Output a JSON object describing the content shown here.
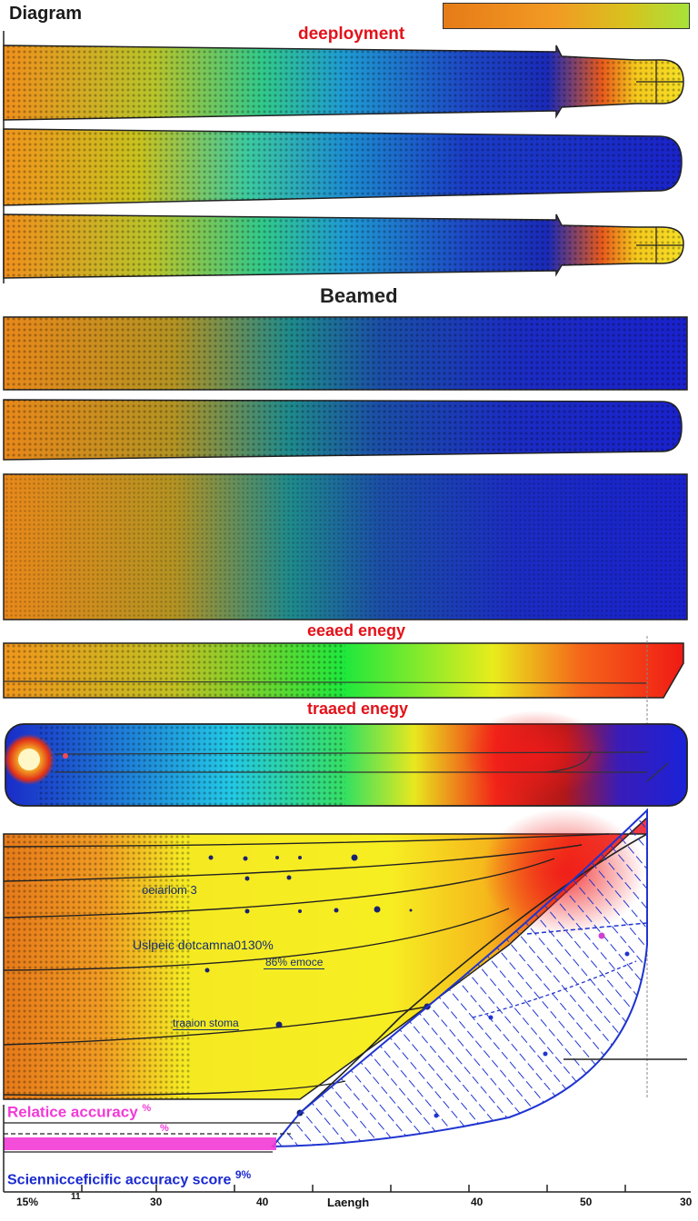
{
  "title": "Diagram",
  "legend": {
    "name": "color-scale-legend"
  },
  "sections": {
    "deployment": "deeployment",
    "beamed": "Beamed",
    "eeaed": "eeaed enegy",
    "traaed": "traaed enegy"
  },
  "annotations": {
    "a1": "oeiarlom 3",
    "a2": "Uslpeic dotcamna0130%",
    "a3": "86% emoce",
    "a4": "traaion stoma",
    "relative": "Relatice accuracy",
    "relative_pct": "%",
    "small_pct": "%",
    "scientific": "Sciennicceficific accuracy score",
    "scientific_pct": "9%"
  },
  "axis": {
    "xlabel": "Laengh",
    "ticks": [
      "15%",
      "11",
      "30",
      "40",
      "40",
      "50",
      "30"
    ]
  },
  "colors": {
    "orange": "#f08a1c",
    "yellow": "#f5ef1e",
    "green": "#27d04a",
    "cyan": "#20c8e0",
    "blue": "#1a2ad0",
    "red": "#ef1a14"
  }
}
